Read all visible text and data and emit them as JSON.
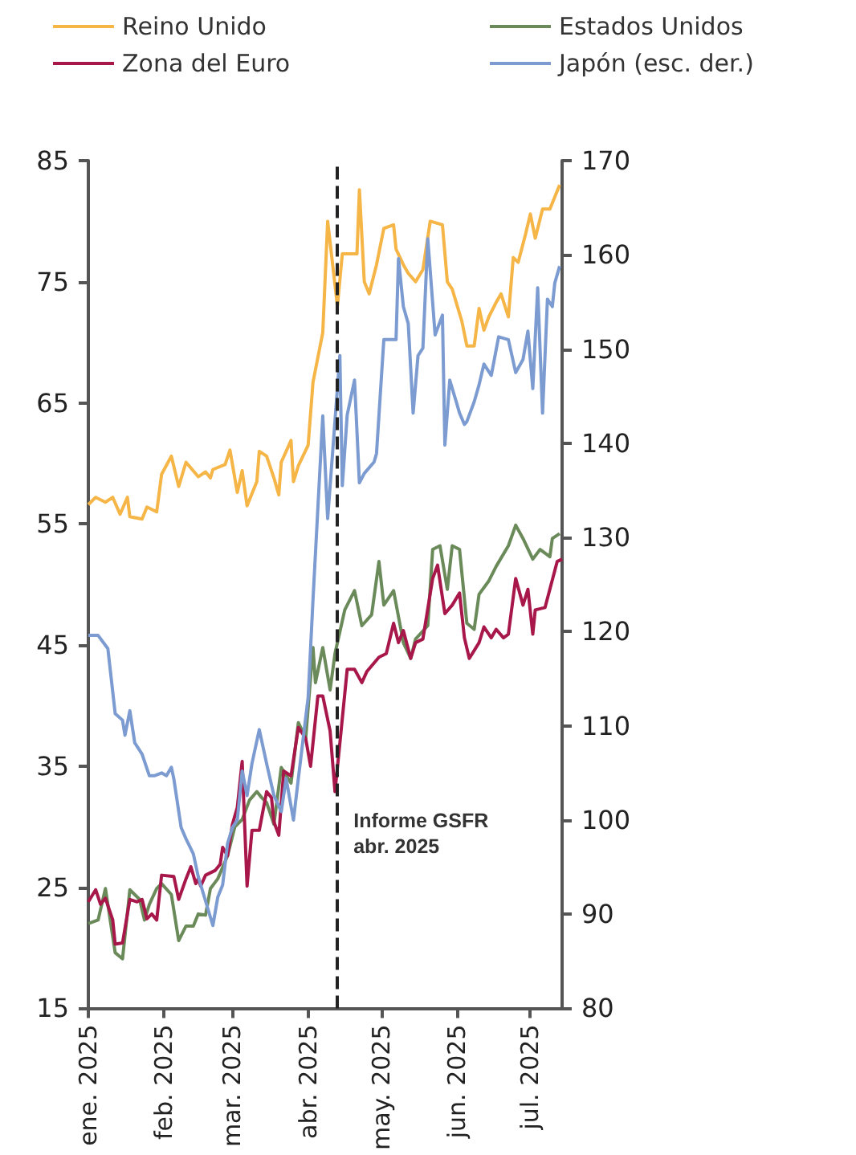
{
  "chart_data": {
    "type": "line",
    "marker": "none",
    "legend": "top",
    "grid": false,
    "xlim": [
      "2025-01-01",
      "2025-07-14"
    ],
    "xticks": [
      {
        "value": "2025-01-01",
        "label": "ene. 2025"
      },
      {
        "value": "2025-02-01",
        "label": "feb. 2025"
      },
      {
        "value": "2025-03-01",
        "label": "mar. 2025"
      },
      {
        "value": "2025-04-01",
        "label": "abr. 2025"
      },
      {
        "value": "2025-05-01",
        "label": "may. 2025"
      },
      {
        "value": "2025-06-01",
        "label": "jun. 2025"
      },
      {
        "value": "2025-07-01",
        "label": "jul. 2025"
      }
    ],
    "ylim": [
      15,
      85
    ],
    "yticks": [
      15,
      25,
      35,
      45,
      55,
      65,
      75,
      85
    ],
    "y2lim": [
      80,
      170
    ],
    "y2ticks": [
      80,
      90,
      100,
      110,
      120,
      130,
      140,
      150,
      160,
      170
    ],
    "ref_lines": [
      {
        "axis": "x",
        "value": "2025-04-13",
        "label": "Informe GSFR\nabr. 2025",
        "color": "#222222",
        "line_style": "dashed"
      }
    ],
    "series": [
      {
        "name": "Reino Unido",
        "color": "#f5b547",
        "x": [
          "2025-01-01",
          "2025-01-04",
          "2025-01-08",
          "2025-01-11",
          "2025-01-14",
          "2025-01-17",
          "2025-01-18",
          "2025-01-23",
          "2025-01-25",
          "2025-01-29",
          "2025-01-31",
          "2025-02-04",
          "2025-02-07",
          "2025-02-10",
          "2025-02-15",
          "2025-02-18",
          "2025-02-20",
          "2025-02-21",
          "2025-02-26",
          "2025-02-28",
          "2025-03-03",
          "2025-03-05",
          "2025-03-07",
          "2025-03-11",
          "2025-03-12",
          "2025-03-15",
          "2025-03-18",
          "2025-03-20",
          "2025-03-21",
          "2025-03-25",
          "2025-03-26",
          "2025-03-28",
          "2025-04-01",
          "2025-04-03",
          "2025-04-07",
          "2025-04-09",
          "2025-04-13",
          "2025-04-15",
          "2025-04-21",
          "2025-04-22",
          "2025-04-24",
          "2025-04-26",
          "2025-04-29",
          "2025-05-02",
          "2025-05-06",
          "2025-05-07",
          "2025-05-10",
          "2025-05-12",
          "2025-05-15",
          "2025-05-18",
          "2025-05-21",
          "2025-05-26",
          "2025-05-28",
          "2025-05-30",
          "2025-06-03",
          "2025-06-05",
          "2025-06-08",
          "2025-06-10",
          "2025-06-12",
          "2025-06-14",
          "2025-06-17",
          "2025-06-19",
          "2025-06-22",
          "2025-06-24",
          "2025-06-26",
          "2025-06-29",
          "2025-07-01",
          "2025-07-03",
          "2025-07-06",
          "2025-07-09",
          "2025-07-13"
        ],
        "values": [
          56.6,
          57.2,
          56.8,
          57.2,
          55.8,
          57.2,
          55.6,
          55.4,
          56.4,
          56,
          59.1,
          60.6,
          58.1,
          60.1,
          58.9,
          59.3,
          58.8,
          59.5,
          59.9,
          61.1,
          57.6,
          59.4,
          56.5,
          58.5,
          61,
          60.6,
          58.8,
          57.4,
          60.1,
          61.9,
          58.5,
          59.8,
          61.5,
          66.7,
          70.8,
          80,
          73,
          77.3,
          77.3,
          82.6,
          75,
          74,
          76.4,
          79.4,
          79.7,
          77.7,
          76.4,
          75.7,
          75,
          76,
          80,
          79.7,
          75,
          74.4,
          71.7,
          69.7,
          69.7,
          72.8,
          71,
          72.1,
          73.3,
          74,
          72.1,
          77,
          76.6,
          78.9,
          80.6,
          78.6,
          81,
          81,
          83
        ]
      },
      {
        "name": "Estados Unidos",
        "color": "#6b8a5a",
        "x": [
          "2025-01-01",
          "2025-01-05",
          "2025-01-08",
          "2025-01-12",
          "2025-01-15",
          "2025-01-18",
          "2025-01-22",
          "2025-01-24",
          "2025-01-26",
          "2025-01-29",
          "2025-01-31",
          "2025-02-04",
          "2025-02-07",
          "2025-02-10",
          "2025-02-13",
          "2025-02-15",
          "2025-02-18",
          "2025-02-20",
          "2025-02-23",
          "2025-02-27",
          "2025-03-02",
          "2025-03-05",
          "2025-03-08",
          "2025-03-11",
          "2025-03-13",
          "2025-03-15",
          "2025-03-18",
          "2025-03-21",
          "2025-03-25",
          "2025-03-28",
          "2025-03-31",
          "2025-04-03",
          "2025-04-04",
          "2025-04-07",
          "2025-04-10",
          "2025-04-12",
          "2025-04-16",
          "2025-04-20",
          "2025-04-23",
          "2025-04-27",
          "2025-04-30",
          "2025-05-02",
          "2025-05-06",
          "2025-05-10",
          "2025-05-13",
          "2025-05-15",
          "2025-05-20",
          "2025-05-22",
          "2025-05-25",
          "2025-05-28",
          "2025-05-30",
          "2025-06-02",
          "2025-06-05",
          "2025-06-08",
          "2025-06-10",
          "2025-06-14",
          "2025-06-17",
          "2025-06-22",
          "2025-06-25",
          "2025-06-28",
          "2025-07-02",
          "2025-07-05",
          "2025-07-09",
          "2025-07-10",
          "2025-07-13"
        ],
        "values": [
          22,
          22.3,
          24.9,
          19.6,
          19.1,
          24.8,
          24,
          22.3,
          23.6,
          24.9,
          25.3,
          24.4,
          20.6,
          21.8,
          21.8,
          22.8,
          22.7,
          24.9,
          25.7,
          27.6,
          30,
          30.6,
          32.2,
          32.9,
          32.4,
          32,
          30.2,
          34.9,
          33.6,
          38.6,
          37.3,
          44.8,
          41.9,
          44.8,
          41.3,
          44.3,
          47.9,
          49.5,
          46.6,
          47.5,
          51.9,
          48.3,
          49.5,
          45.2,
          43.9,
          45.5,
          46.6,
          52.9,
          53.2,
          49.6,
          53.2,
          52.9,
          46.8,
          46.3,
          49.2,
          50.3,
          51.5,
          53.2,
          54.9,
          53.8,
          52.1,
          52.9,
          52.3,
          53.8,
          54.2
        ]
      },
      {
        "name": "Zona del Euro",
        "color": "#a8174a",
        "x": [
          "2025-01-01",
          "2025-01-04",
          "2025-01-06",
          "2025-01-08",
          "2025-01-11",
          "2025-01-12",
          "2025-01-15",
          "2025-01-18",
          "2025-01-21",
          "2025-01-23",
          "2025-01-25",
          "2025-01-27",
          "2025-01-29",
          "2025-01-31",
          "2025-02-05",
          "2025-02-07",
          "2025-02-10",
          "2025-02-12",
          "2025-02-14",
          "2025-02-15",
          "2025-02-16",
          "2025-02-18",
          "2025-02-22",
          "2025-02-24",
          "2025-02-25",
          "2025-02-27",
          "2025-03-01",
          "2025-03-03",
          "2025-03-05",
          "2025-03-07",
          "2025-03-09",
          "2025-03-12",
          "2025-03-15",
          "2025-03-17",
          "2025-03-18",
          "2025-03-20",
          "2025-03-22",
          "2025-03-25",
          "2025-03-28",
          "2025-03-31",
          "2025-04-02",
          "2025-04-05",
          "2025-04-07",
          "2025-04-10",
          "2025-04-12",
          "2025-04-14",
          "2025-04-17",
          "2025-04-20",
          "2025-04-23",
          "2025-04-25",
          "2025-04-30",
          "2025-05-03",
          "2025-05-06",
          "2025-05-08",
          "2025-05-10",
          "2025-05-13",
          "2025-05-15",
          "2025-05-18",
          "2025-05-22",
          "2025-05-24",
          "2025-05-27",
          "2025-05-30",
          "2025-06-02",
          "2025-06-04",
          "2025-06-06",
          "2025-06-10",
          "2025-06-12",
          "2025-06-15",
          "2025-06-17",
          "2025-06-20",
          "2025-06-22",
          "2025-06-25",
          "2025-06-28",
          "2025-06-30",
          "2025-07-02",
          "2025-07-03",
          "2025-07-07",
          "2025-07-12",
          "2025-07-14"
        ],
        "values": [
          23.8,
          24.8,
          23.6,
          24.1,
          22.3,
          20.3,
          20.4,
          24,
          23.8,
          24,
          22.4,
          22.8,
          22.3,
          26,
          25.9,
          24,
          25.7,
          26.7,
          25.3,
          25.7,
          25.1,
          26,
          26.4,
          26.9,
          28.3,
          27.6,
          30.2,
          31.6,
          35.4,
          25.1,
          29.7,
          29.7,
          32.9,
          32.4,
          30.4,
          29.3,
          34.6,
          34.2,
          38.2,
          37.3,
          35,
          40.8,
          40.8,
          37.9,
          32.9,
          36.9,
          43,
          43,
          41.9,
          42.8,
          44,
          44.3,
          46.8,
          45.2,
          46.2,
          43.9,
          45.2,
          45.5,
          50.5,
          51.6,
          47.6,
          48.3,
          49.3,
          45.6,
          43.9,
          45.2,
          46.5,
          45.6,
          46.3,
          45.6,
          45.9,
          50.5,
          48.3,
          49.6,
          45.9,
          47.9,
          48.1,
          51.9,
          52.1
        ]
      },
      {
        "name": "Japón (esc. der.)",
        "color": "#7b9bd1",
        "axis": "y2",
        "x": [
          "2025-01-01",
          "2025-01-05",
          "2025-01-09",
          "2025-01-12",
          "2025-01-15",
          "2025-01-16",
          "2025-01-18",
          "2025-01-20",
          "2025-01-23",
          "2025-01-26",
          "2025-01-28",
          "2025-01-31",
          "2025-02-02",
          "2025-02-04",
          "2025-02-05",
          "2025-02-08",
          "2025-02-10",
          "2025-02-13",
          "2025-02-15",
          "2025-02-18",
          "2025-02-21",
          "2025-02-23",
          "2025-02-25",
          "2025-02-27",
          "2025-03-01",
          "2025-03-03",
          "2025-03-05",
          "2025-03-07",
          "2025-03-09",
          "2025-03-12",
          "2025-03-15",
          "2025-03-18",
          "2025-03-21",
          "2025-03-23",
          "2025-03-26",
          "2025-03-28",
          "2025-04-01",
          "2025-04-03",
          "2025-04-07",
          "2025-04-09",
          "2025-04-14",
          "2025-04-15",
          "2025-04-17",
          "2025-04-20",
          "2025-04-22",
          "2025-04-24",
          "2025-04-28",
          "2025-04-29",
          "2025-05-02",
          "2025-05-07",
          "2025-05-08",
          "2025-05-10",
          "2025-05-12",
          "2025-05-14",
          "2025-05-16",
          "2025-05-18",
          "2025-05-20",
          "2025-05-23",
          "2025-05-26",
          "2025-05-27",
          "2025-05-29",
          "2025-06-01",
          "2025-06-02",
          "2025-06-04",
          "2025-06-05",
          "2025-06-08",
          "2025-06-10",
          "2025-06-12",
          "2025-06-15",
          "2025-06-18",
          "2025-06-22",
          "2025-06-25",
          "2025-06-28",
          "2025-06-30",
          "2025-07-02",
          "2025-07-04",
          "2025-07-06",
          "2025-07-08",
          "2025-07-10",
          "2025-07-11",
          "2025-07-13"
        ],
        "values": [
          119.6,
          119.6,
          118.2,
          111.3,
          110.6,
          109,
          111.6,
          108.2,
          107,
          104.7,
          104.7,
          105,
          104.7,
          105.6,
          104.4,
          99.2,
          98,
          96.4,
          94,
          91.4,
          88.8,
          91.8,
          93.1,
          97.5,
          99.2,
          100,
          105.2,
          102.6,
          106,
          109.6,
          106,
          102.6,
          100.9,
          104.4,
          100,
          104.4,
          113,
          123.4,
          142.9,
          132,
          149.3,
          135.5,
          143,
          146.7,
          135.8,
          136.8,
          138,
          138.9,
          151,
          151,
          159.6,
          154.5,
          152.7,
          143.2,
          149.3,
          150.1,
          161.7,
          151.5,
          153.6,
          139.8,
          146.7,
          144.1,
          143.2,
          142,
          142.3,
          144.4,
          146.2,
          148.4,
          147.2,
          151.3,
          151,
          147.5,
          148.9,
          151.9,
          145.8,
          156.5,
          143.2,
          155.3,
          154.5,
          157,
          158.8
        ]
      }
    ]
  }
}
